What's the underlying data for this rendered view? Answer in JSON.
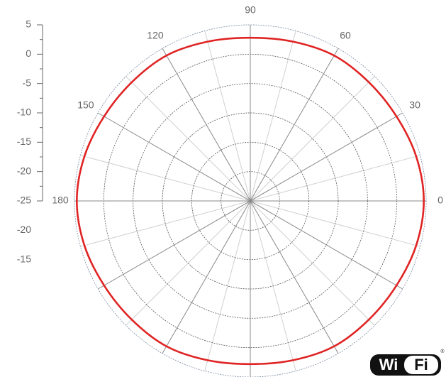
{
  "chart_data": {
    "type": "polar",
    "theta": [
      0,
      15,
      30,
      45,
      60,
      75,
      90,
      105,
      120,
      135,
      150,
      165,
      180,
      195,
      210,
      225,
      240,
      255,
      270,
      285,
      300,
      315,
      330,
      345
    ],
    "series": [
      {
        "color": "#e02424",
        "values": [
          4.6,
          4.3,
          3.8,
          3.6,
          3.6,
          3.1,
          2.8,
          3.1,
          3.6,
          3.6,
          3.8,
          4.3,
          4.6,
          4.3,
          3.8,
          3.6,
          3.6,
          3.1,
          2.8,
          3.1,
          3.6,
          3.6,
          3.8,
          4.3
        ]
      }
    ],
    "rlim": [
      -25,
      5
    ],
    "rticks": [
      5,
      0,
      -5,
      -10,
      -15,
      -20,
      -25
    ],
    "rticks_lower": [
      -20,
      -15
    ],
    "thetaticks": [
      0,
      30,
      60,
      90,
      120,
      150,
      180
    ],
    "grid": true
  },
  "logo": {
    "left": "Wi",
    "right": "Fi",
    "mark": "®"
  }
}
